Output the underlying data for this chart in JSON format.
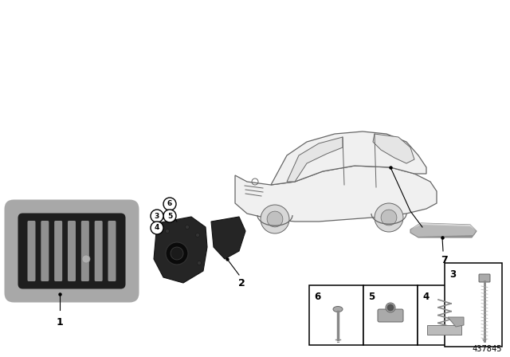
{
  "background_color": "#ffffff",
  "diagram_number": "437845",
  "border_color": "#000000",
  "circle_bg": "#ffffff",
  "circle_border": "#000000",
  "gray_light": "#c8c8c8",
  "gray_dark": "#2a2a2a",
  "gray_mid": "#888888",
  "gray_chrome": "#b0b0b0",
  "gray_chrome2": "#d0d0d0",
  "car_line_color": "#666666",
  "car_fill": "#f0f0f0",
  "grille_frame": "#a8a8a8",
  "grille_inner": "#1e1e1e",
  "grille_slat": "#909090"
}
